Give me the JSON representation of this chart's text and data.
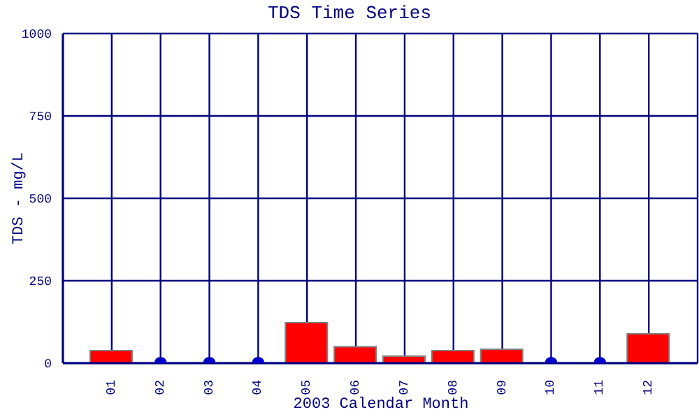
{
  "chart_data": {
    "type": "bar",
    "title": "TDS Time Series",
    "xlabel": "2003 Calendar Month",
    "ylabel": "TDS - mg/L",
    "categories": [
      "01",
      "02",
      "03",
      "04",
      "05",
      "06",
      "07",
      "08",
      "09",
      "10",
      "11",
      "12"
    ],
    "series": [
      {
        "color": "#ff0000",
        "values": [
          38,
          null,
          null,
          null,
          123,
          50,
          21,
          38,
          42,
          null,
          null,
          89
        ]
      },
      {
        "type": "scatter",
        "color": "#0000cc",
        "marker": "circle",
        "values": [
          null,
          0,
          0,
          0,
          null,
          null,
          null,
          null,
          null,
          0,
          0,
          null
        ]
      }
    ],
    "ylim": [
      0,
      1000
    ],
    "yticks": [
      0,
      250,
      500,
      750,
      1000
    ],
    "grid": true,
    "legend": false
  }
}
